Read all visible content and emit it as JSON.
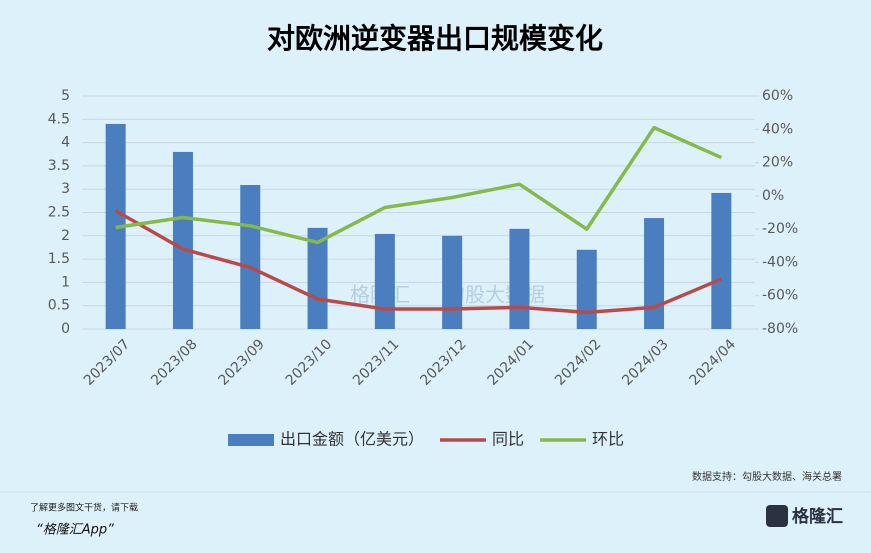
{
  "chart_data": {
    "type": "bar-line",
    "title": "对欧洲逆变器出口规模变化",
    "categories": [
      "2023/07",
      "2023/08",
      "2023/09",
      "2023/10",
      "2023/11",
      "2023/12",
      "2024/01",
      "2024/02",
      "2024/03",
      "2024/04"
    ],
    "series": [
      {
        "name": "出口金额（亿美元）",
        "type": "bar",
        "color": "#4a7ebf",
        "values": [
          4.4,
          3.8,
          3.09,
          2.17,
          2.04,
          2.0,
          2.15,
          1.7,
          2.38,
          2.92
        ]
      },
      {
        "name": "同比",
        "type": "line",
        "axis": "y2",
        "color": "#b84a4a",
        "values": [
          -9,
          -32,
          -43,
          -62,
          -68,
          -68,
          -67,
          -70,
          -67,
          -50
        ]
      },
      {
        "name": "环比",
        "type": "line",
        "axis": "y2",
        "color": "#86b94a",
        "values": [
          -19,
          -13,
          -18,
          -28,
          -7,
          -1,
          7,
          -20,
          41,
          23
        ]
      }
    ],
    "ylim": [
      0,
      5
    ],
    "yticks": [
      0,
      0.5,
      1,
      1.5,
      2,
      2.5,
      3,
      3.5,
      4,
      4.5,
      5
    ],
    "y2lim": [
      -80,
      60
    ],
    "y2ticks": [
      {
        "value": -80,
        "label": "-80%"
      },
      {
        "value": -60,
        "label": "-60%"
      },
      {
        "value": -40,
        "label": "-40%"
      },
      {
        "value": -20,
        "label": "-20%"
      },
      {
        "value": 0,
        "label": "0%"
      },
      {
        "value": 20,
        "label": "20%"
      },
      {
        "value": 40,
        "label": "40%"
      },
      {
        "value": 60,
        "label": "60%"
      }
    ],
    "grid": true,
    "legend": "bottom",
    "watermark": [
      "格隆汇",
      "勾股大数据"
    ],
    "source": "数据支持：勾股大数据、海关总署"
  },
  "footer": {
    "prompt": "了解更多图文干货，请下载",
    "app": "“格隆汇App”",
    "logo": "格隆汇"
  }
}
